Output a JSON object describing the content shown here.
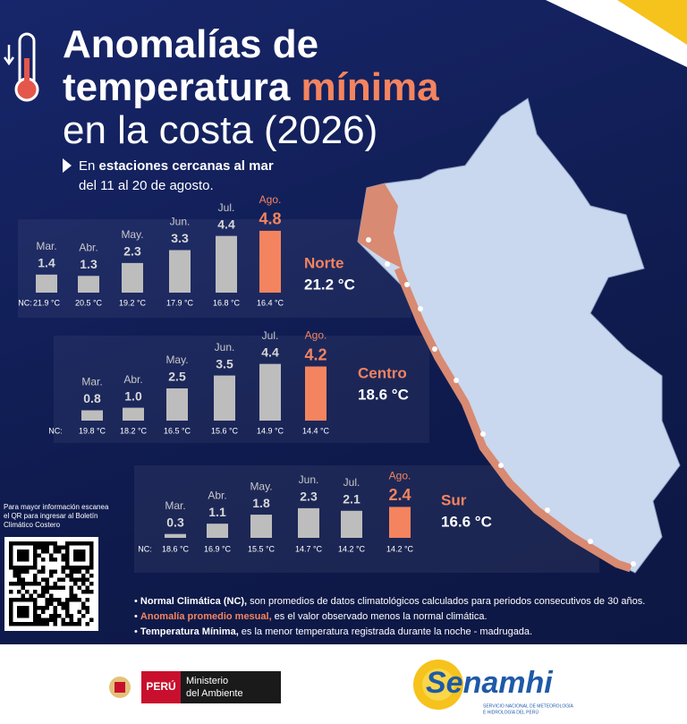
{
  "header": {
    "title_line1": "Anomalías de",
    "title_line2a": "temperatura",
    "title_line2b": "mínima",
    "title_line3": "en la costa (2026)",
    "subtitle_a": "En",
    "subtitle_b": "estaciones cercanas al mar",
    "subtitle_line2": "del 11 al 20 de agosto."
  },
  "chart_data": [
    {
      "type": "bar",
      "region": "Norte",
      "region_temp": "21.2 °C",
      "categories": [
        "Mar.",
        "Abr.",
        "May.",
        "Jun.",
        "Jul.",
        "Ago."
      ],
      "values": [
        1.4,
        1.3,
        2.3,
        3.3,
        4.4,
        4.8
      ],
      "colors": [
        "#bdbdbd",
        "#bdbdbd",
        "#bdbdbd",
        "#bdbdbd",
        "#bdbdbd",
        "#f4845f"
      ],
      "nc_label": "NC:",
      "nc_values": [
        "21.9 °C",
        "20.5 °C",
        "19.2 °C",
        "17.9 °C",
        "16.8 °C",
        "16.4 °C"
      ],
      "ylim": [
        0,
        5
      ]
    },
    {
      "type": "bar",
      "region": "Centro",
      "region_temp": "18.6 °C",
      "categories": [
        "Mar.",
        "Abr.",
        "May.",
        "Jun.",
        "Jul.",
        "Ago."
      ],
      "values": [
        0.8,
        1,
        2.5,
        3.5,
        4.4,
        4.2
      ],
      "value_labels": [
        "0.8",
        "1.0",
        "2.5",
        "3.5",
        "4.4",
        "4.2"
      ],
      "colors": [
        "#bdbdbd",
        "#bdbdbd",
        "#bdbdbd",
        "#bdbdbd",
        "#bdbdbd",
        "#f4845f"
      ],
      "nc_label": "NC:",
      "nc_values": [
        "19.8 °C",
        "18.2 °C",
        "16.5 °C",
        "15.6 °C",
        "14.9 °C",
        "14.4 °C"
      ],
      "ylim": [
        0,
        5
      ]
    },
    {
      "type": "bar",
      "region": "Sur",
      "region_temp": "16.6 °C",
      "categories": [
        "Mar.",
        "Abr.",
        "May.",
        "Jun.",
        "Jul.",
        "Ago."
      ],
      "values": [
        0.3,
        1.1,
        1.8,
        2.3,
        2.1,
        2.4
      ],
      "colors": [
        "#bdbdbd",
        "#bdbdbd",
        "#bdbdbd",
        "#bdbdbd",
        "#bdbdbd",
        "#f4845f"
      ],
      "nc_label": "NC:",
      "nc_values": [
        "18.6 °C",
        "16.9 °C",
        "15.5 °C",
        "14.7 °C",
        "14.2 °C",
        "14.2 °C"
      ],
      "ylim": [
        0,
        5
      ]
    }
  ],
  "qr": {
    "text": "Para mayor información escanea el QR para ingresar al Boletín Climático Costero"
  },
  "notes": [
    {
      "bold": "Normal Climática (NC),",
      "text": " son promedios de datos climatológicos calculados para periodos consecutivos de 30 años."
    },
    {
      "bold": "Anomalía promedio mesual,",
      "text": " es el valor observado menos la normal climática."
    },
    {
      "bold": "Temperatura Mínima,",
      "text": " es la menor temperatura registrada durante la noche - madrugada."
    }
  ],
  "footer": {
    "peru": "PERÚ",
    "ministry_line1": "Ministerio",
    "ministry_line2": "del Ambiente",
    "senamhi": "Senamhi",
    "senamhi_sub1": "SERVICIO NACIONAL DE METEOROLOGÍA",
    "senamhi_sub2": "E HIDROLOGÍA DEL PERÚ"
  }
}
